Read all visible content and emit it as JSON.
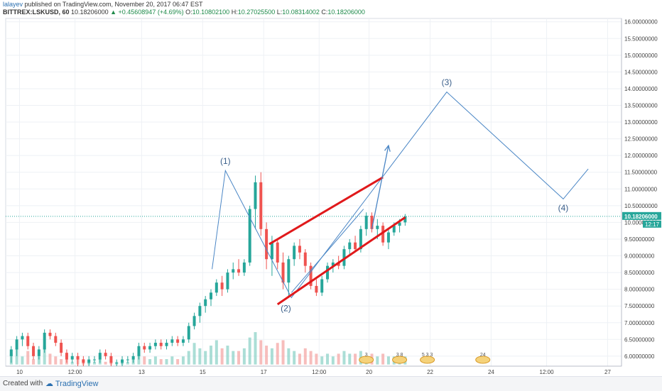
{
  "header": {
    "publisher": "lalayev",
    "published_text": "published on TradingView.com, November 20, 2017 06:47 EST",
    "symbol": "BITTREX:LSKUSD, 60",
    "last": "10.18206000",
    "change": "▲ +0.45608947 (+4.69%)",
    "open": "10.10802100",
    "high": "10.27025500",
    "low": "10.08314002",
    "close": "10.18206000"
  },
  "footer": {
    "created_with": "Created with",
    "brand": "TradingView"
  },
  "colors": {
    "up": "#26a69a",
    "down": "#ef5350",
    "channel": "#e0191b",
    "wave": "#4a86c5",
    "price_label": "#26a69a",
    "grid": "#eef1f5"
  },
  "chart_data": {
    "type": "candlestick",
    "y_ticks": [
      "16.00000000",
      "15.50000000",
      "15.00000000",
      "14.50000000",
      "14.00000000",
      "13.50000000",
      "13.00000000",
      "12.50000000",
      "12.00000000",
      "11.50000000",
      "11.00000000",
      "10.50000000",
      "10.00000000",
      "9.50000000",
      "9.00000000",
      "8.50000000",
      "8.00000000",
      "7.50000000",
      "7.00000000",
      "6.50000000",
      "6.00000000"
    ],
    "ylim": [
      5.7,
      16.1
    ],
    "x_ticks": [
      "10",
      "12:00",
      "13",
      "15",
      "17",
      "12:00",
      "20",
      "22",
      "24",
      "12:00",
      "27"
    ],
    "x_tick_pos": [
      2.5,
      12.5,
      24.5,
      35.5,
      46.5,
      56.5,
      65.5,
      76.5,
      87.5,
      97.5,
      108.5
    ],
    "last_price_label": "10.18206000",
    "countdown": "12:17",
    "candles": [
      {
        "o": 6.0,
        "h": 6.3,
        "l": 5.8,
        "c": 6.2
      },
      {
        "o": 6.2,
        "h": 6.6,
        "l": 6.0,
        "c": 6.5
      },
      {
        "o": 6.5,
        "h": 6.7,
        "l": 6.3,
        "c": 6.6
      },
      {
        "o": 6.6,
        "h": 6.7,
        "l": 6.2,
        "c": 6.3
      },
      {
        "o": 6.3,
        "h": 6.4,
        "l": 5.9,
        "c": 6.0
      },
      {
        "o": 6.0,
        "h": 6.3,
        "l": 5.9,
        "c": 6.2
      },
      {
        "o": 6.2,
        "h": 6.8,
        "l": 6.1,
        "c": 6.7
      },
      {
        "o": 6.7,
        "h": 6.8,
        "l": 6.5,
        "c": 6.6
      },
      {
        "o": 6.6,
        "h": 6.7,
        "l": 6.3,
        "c": 6.4
      },
      {
        "o": 6.4,
        "h": 6.5,
        "l": 6.0,
        "c": 6.1
      },
      {
        "o": 6.1,
        "h": 6.2,
        "l": 5.8,
        "c": 5.9
      },
      {
        "o": 5.9,
        "h": 6.1,
        "l": 5.8,
        "c": 6.0
      },
      {
        "o": 6.0,
        "h": 6.1,
        "l": 5.7,
        "c": 5.9
      },
      {
        "o": 5.9,
        "h": 6.0,
        "l": 5.7,
        "c": 5.8
      },
      {
        "o": 5.8,
        "h": 6.0,
        "l": 5.7,
        "c": 5.9
      },
      {
        "o": 5.9,
        "h": 6.0,
        "l": 5.8,
        "c": 5.9
      },
      {
        "o": 5.9,
        "h": 6.2,
        "l": 5.8,
        "c": 6.1
      },
      {
        "o": 6.1,
        "h": 6.2,
        "l": 5.9,
        "c": 6.0
      },
      {
        "o": 6.0,
        "h": 6.1,
        "l": 5.7,
        "c": 5.8
      },
      {
        "o": 5.8,
        "h": 5.9,
        "l": 5.7,
        "c": 5.8
      },
      {
        "o": 5.8,
        "h": 6.0,
        "l": 5.7,
        "c": 5.9
      },
      {
        "o": 5.9,
        "h": 6.0,
        "l": 5.8,
        "c": 5.9
      },
      {
        "o": 5.9,
        "h": 6.1,
        "l": 5.8,
        "c": 6.0
      },
      {
        "o": 6.0,
        "h": 6.4,
        "l": 5.9,
        "c": 6.3
      },
      {
        "o": 6.3,
        "h": 6.4,
        "l": 6.1,
        "c": 6.2
      },
      {
        "o": 6.2,
        "h": 6.4,
        "l": 6.1,
        "c": 6.3
      },
      {
        "o": 6.3,
        "h": 6.5,
        "l": 6.2,
        "c": 6.4
      },
      {
        "o": 6.4,
        "h": 6.5,
        "l": 6.2,
        "c": 6.3
      },
      {
        "o": 6.3,
        "h": 6.5,
        "l": 6.2,
        "c": 6.4
      },
      {
        "o": 6.4,
        "h": 6.6,
        "l": 6.3,
        "c": 6.5
      },
      {
        "o": 6.5,
        "h": 6.6,
        "l": 6.3,
        "c": 6.4
      },
      {
        "o": 6.4,
        "h": 6.6,
        "l": 6.3,
        "c": 6.5
      },
      {
        "o": 6.5,
        "h": 7.0,
        "l": 6.4,
        "c": 6.9
      },
      {
        "o": 6.9,
        "h": 7.3,
        "l": 6.8,
        "c": 7.2
      },
      {
        "o": 7.2,
        "h": 7.6,
        "l": 7.0,
        "c": 7.5
      },
      {
        "o": 7.5,
        "h": 7.8,
        "l": 7.3,
        "c": 7.7
      },
      {
        "o": 7.7,
        "h": 8.0,
        "l": 7.5,
        "c": 7.9
      },
      {
        "o": 7.9,
        "h": 8.3,
        "l": 7.8,
        "c": 8.2
      },
      {
        "o": 8.2,
        "h": 8.4,
        "l": 7.8,
        "c": 8.0
      },
      {
        "o": 8.0,
        "h": 8.6,
        "l": 7.9,
        "c": 8.5
      },
      {
        "o": 8.5,
        "h": 8.8,
        "l": 8.3,
        "c": 8.6
      },
      {
        "o": 8.6,
        "h": 8.9,
        "l": 8.4,
        "c": 8.5
      },
      {
        "o": 8.5,
        "h": 8.9,
        "l": 8.4,
        "c": 8.8
      },
      {
        "o": 8.8,
        "h": 10.5,
        "l": 8.7,
        "c": 10.4
      },
      {
        "o": 10.4,
        "h": 11.4,
        "l": 9.8,
        "c": 11.2
      },
      {
        "o": 11.2,
        "h": 11.5,
        "l": 9.6,
        "c": 9.8
      },
      {
        "o": 9.8,
        "h": 10.0,
        "l": 8.6,
        "c": 8.9
      },
      {
        "o": 8.9,
        "h": 9.6,
        "l": 8.4,
        "c": 9.4
      },
      {
        "o": 9.4,
        "h": 9.5,
        "l": 8.6,
        "c": 8.8
      },
      {
        "o": 8.8,
        "h": 9.1,
        "l": 8.0,
        "c": 8.2
      },
      {
        "o": 8.2,
        "h": 9.0,
        "l": 7.8,
        "c": 8.9
      },
      {
        "o": 8.9,
        "h": 9.4,
        "l": 8.7,
        "c": 9.3
      },
      {
        "o": 9.3,
        "h": 9.5,
        "l": 8.9,
        "c": 9.1
      },
      {
        "o": 9.1,
        "h": 9.2,
        "l": 8.5,
        "c": 8.7
      },
      {
        "o": 8.7,
        "h": 8.8,
        "l": 8.0,
        "c": 8.1
      },
      {
        "o": 8.1,
        "h": 8.3,
        "l": 7.8,
        "c": 7.9
      },
      {
        "o": 7.9,
        "h": 8.4,
        "l": 7.8,
        "c": 8.3
      },
      {
        "o": 8.3,
        "h": 8.8,
        "l": 8.2,
        "c": 8.7
      },
      {
        "o": 8.7,
        "h": 8.9,
        "l": 8.5,
        "c": 8.8
      },
      {
        "o": 8.8,
        "h": 9.0,
        "l": 8.6,
        "c": 8.7
      },
      {
        "o": 8.7,
        "h": 9.3,
        "l": 8.6,
        "c": 9.2
      },
      {
        "o": 9.2,
        "h": 9.5,
        "l": 9.0,
        "c": 9.4
      },
      {
        "o": 9.4,
        "h": 9.6,
        "l": 9.1,
        "c": 9.2
      },
      {
        "o": 9.2,
        "h": 9.9,
        "l": 9.1,
        "c": 9.8
      },
      {
        "o": 9.8,
        "h": 10.3,
        "l": 9.6,
        "c": 10.2
      },
      {
        "o": 10.2,
        "h": 10.3,
        "l": 9.7,
        "c": 9.8
      },
      {
        "o": 9.8,
        "h": 10.1,
        "l": 9.5,
        "c": 9.9
      },
      {
        "o": 9.9,
        "h": 10.0,
        "l": 9.3,
        "c": 9.4
      },
      {
        "o": 9.4,
        "h": 9.8,
        "l": 9.2,
        "c": 9.7
      },
      {
        "o": 9.7,
        "h": 10.0,
        "l": 9.6,
        "c": 9.9
      },
      {
        "o": 9.9,
        "h": 10.1,
        "l": 9.7,
        "c": 10.0
      },
      {
        "o": 10.0,
        "h": 10.25,
        "l": 9.9,
        "c": 10.18
      }
    ],
    "volumes": [
      0.4,
      0.6,
      0.3,
      0.5,
      0.2,
      0.3,
      0.7,
      0.4,
      0.3,
      0.2,
      0.2,
      0.1,
      0.3,
      0.2,
      0.1,
      0.1,
      0.2,
      0.1,
      0.1,
      0.1,
      0.1,
      0.1,
      0.2,
      0.4,
      0.3,
      0.2,
      0.3,
      0.2,
      0.2,
      0.3,
      0.2,
      0.3,
      0.5,
      0.8,
      0.6,
      0.5,
      0.7,
      0.9,
      0.6,
      0.7,
      0.5,
      0.5,
      0.6,
      1.0,
      1.2,
      0.9,
      0.7,
      0.6,
      0.8,
      0.9,
      0.6,
      0.5,
      0.4,
      0.6,
      0.5,
      0.4,
      0.3,
      0.4,
      0.3,
      0.4,
      0.5,
      0.4,
      0.4,
      0.5,
      0.3,
      0.4,
      0.3,
      0.4,
      0.3,
      0.3,
      0.2,
      0.3
    ],
    "channel_lines": [
      {
        "x1": 47.5,
        "y1": 9.35,
        "x2": 68.0,
        "y2": 11.35
      },
      {
        "x1": 49.0,
        "y1": 7.55,
        "x2": 72.0,
        "y2": 10.15
      }
    ],
    "wave_path": [
      {
        "x": 37.2,
        "y": 8.6
      },
      {
        "x": 39.6,
        "y": 11.55
      },
      {
        "x": 51.5,
        "y": 7.75
      },
      {
        "x": 79.5,
        "y": 13.9
      },
      {
        "x": 100.5,
        "y": 10.7
      },
      {
        "x": 105.0,
        "y": 11.6
      }
    ],
    "thin_trend": {
      "x1": 51.5,
      "y1": 7.9,
      "x2": 64.5,
      "y2": 10.4
    },
    "arrow": {
      "x1": 66.0,
      "y1": 9.8,
      "x2": 69.0,
      "y2": 12.3
    },
    "wave_labels": [
      {
        "label": "(1)",
        "x": 39.6,
        "y": 11.75
      },
      {
        "label": "(2)",
        "x": 50.5,
        "y": 7.35
      },
      {
        "label": "(3)",
        "x": 79.5,
        "y": 14.1
      },
      {
        "label": "(4)",
        "x": 100.5,
        "y": 10.35
      }
    ],
    "event_badges": [
      {
        "x": 65.0,
        "text": "3"
      },
      {
        "x": 71.0,
        "text": "3 8"
      },
      {
        "x": 76.0,
        "text": "5 3 3"
      },
      {
        "x": 86.0,
        "text": "24"
      }
    ]
  }
}
